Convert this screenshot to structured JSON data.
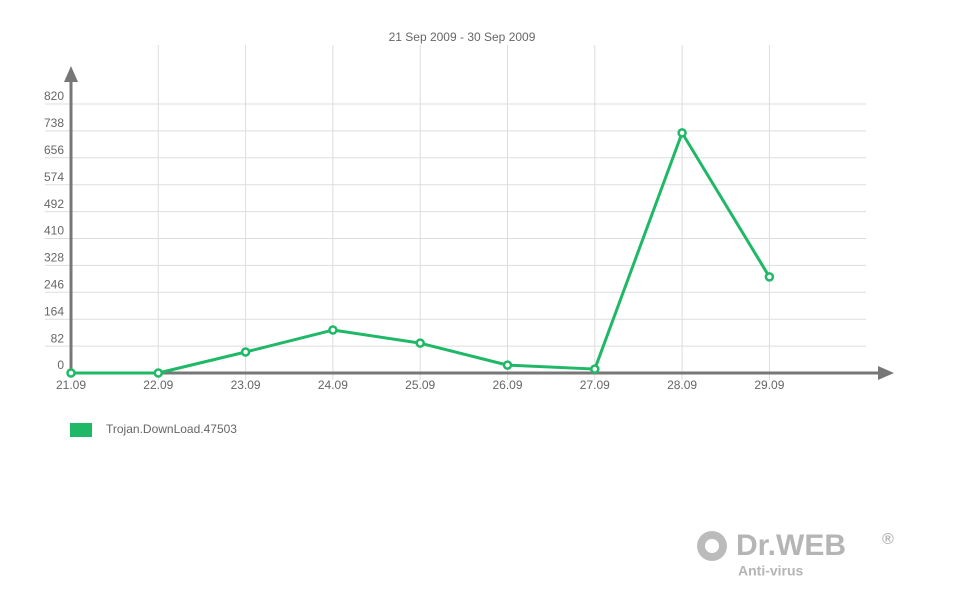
{
  "chart_data": {
    "type": "line",
    "title": "21 Sep 2009 - 30 Sep 2009",
    "categories": [
      "21.09",
      "22.09",
      "23.09",
      "24.09",
      "25.09",
      "26.09",
      "27.09",
      "28.09",
      "29.09"
    ],
    "series": [
      {
        "name": "Trojan.DownLoad.47503",
        "color": "#1fb866",
        "values": [
          0,
          0,
          64,
          131,
          91,
          24,
          12,
          732,
          293
        ]
      }
    ],
    "ylim": [
      0,
      820
    ],
    "yticks": [
      0,
      82,
      164,
      246,
      328,
      410,
      492,
      574,
      656,
      738,
      820
    ],
    "grid": true,
    "legend": "bottom-left"
  },
  "logo": {
    "brand": "Dr.WEB",
    "mark": "®",
    "tagline": "Anti-virus"
  }
}
